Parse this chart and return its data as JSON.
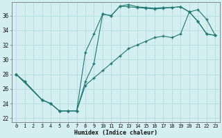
{
  "xlabel": "Humidex (Indice chaleur)",
  "background_color": "#d4eff1",
  "grid_color": "#afd8db",
  "line_color": "#1e7870",
  "xlim": [
    -0.5,
    23.5
  ],
  "ylim": [
    21.5,
    37.8
  ],
  "yticks": [
    22,
    24,
    26,
    28,
    30,
    32,
    34,
    36
  ],
  "xticks": [
    0,
    1,
    2,
    3,
    4,
    5,
    6,
    7,
    8,
    9,
    10,
    11,
    12,
    13,
    14,
    15,
    16,
    17,
    18,
    19,
    20,
    21,
    22,
    23
  ],
  "curve1_x": [
    0,
    1,
    3,
    4,
    5,
    6,
    7,
    8,
    9,
    10,
    11,
    12,
    13,
    14,
    15,
    16,
    17,
    18,
    19,
    20,
    21,
    22,
    23
  ],
  "curve1_y": [
    28,
    27,
    24.5,
    24,
    23,
    23,
    23,
    31,
    33.5,
    36.2,
    36.0,
    37.3,
    37.5,
    37.2,
    37.1,
    37.0,
    37.1,
    37.1,
    37.2,
    36.5,
    35.2,
    33.5,
    33.3
  ],
  "curve2_x": [
    0,
    3,
    4,
    5,
    6,
    7,
    8,
    9,
    10,
    11,
    12,
    13,
    14,
    15,
    16,
    17,
    18,
    19,
    20,
    21,
    22,
    23
  ],
  "curve2_y": [
    28,
    24.5,
    24,
    23,
    23,
    23,
    26.5,
    27.5,
    28.5,
    29.5,
    30.5,
    31.5,
    32.0,
    32.5,
    33.0,
    33.2,
    33.0,
    33.5,
    36.5,
    36.8,
    35.5,
    33.3
  ],
  "curve3_x": [
    0,
    1,
    3,
    4,
    5,
    6,
    7,
    8,
    9,
    10,
    11,
    12,
    13,
    14,
    15,
    16,
    17,
    18,
    19,
    20,
    21,
    22,
    23
  ],
  "curve3_y": [
    28,
    27,
    24.5,
    24,
    23,
    23,
    23,
    27,
    29.5,
    36.2,
    36.0,
    37.3,
    37.2,
    37.1,
    37.0,
    36.9,
    37.0,
    37.1,
    37.2,
    36.5,
    35.2,
    33.5,
    33.3
  ]
}
